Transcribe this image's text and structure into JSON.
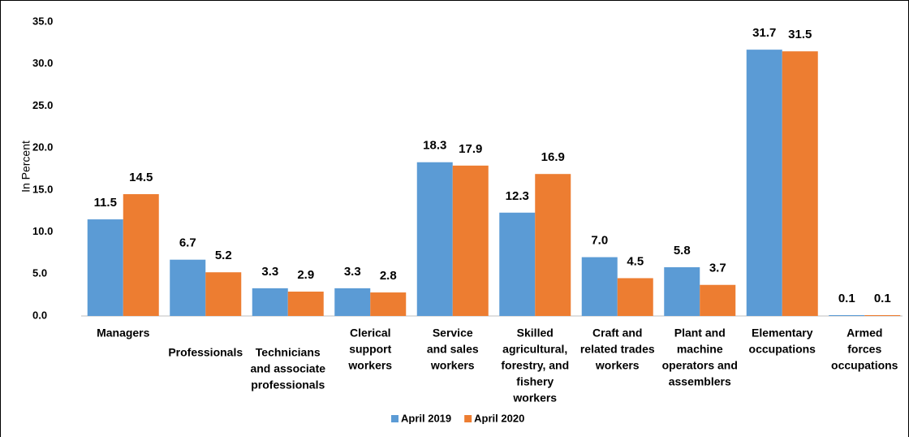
{
  "chart_data": {
    "type": "bar",
    "y_label": "In Percent",
    "categories": [
      [
        "Managers"
      ],
      [
        "Professionals"
      ],
      [
        "Technicians",
        "and associate",
        "professionals"
      ],
      [
        "Clerical",
        "support",
        "workers"
      ],
      [
        "Service",
        "and sales",
        "workers"
      ],
      [
        "Skilled",
        "agricultural,",
        "forestry, and",
        "fishery",
        "workers"
      ],
      [
        "Craft and",
        "related trades",
        "workers"
      ],
      [
        "Plant and",
        "machine",
        "operators and",
        "assemblers"
      ],
      [
        "Elementary",
        "occupations"
      ],
      [
        "Armed",
        "forces",
        "occupations"
      ]
    ],
    "series": [
      {
        "name": "April 2019",
        "color": "#5b9bd5",
        "values": [
          11.5,
          6.7,
          3.3,
          3.3,
          18.3,
          12.3,
          7.0,
          5.8,
          31.7,
          0.1
        ],
        "value_labels": [
          "11.5",
          "6.7",
          "3.3",
          "3.3",
          "18.3",
          "12.3",
          "7.0",
          "5.8",
          "31.7",
          "0.1"
        ]
      },
      {
        "name": "April 2020",
        "color": "#ed7d31",
        "values": [
          14.5,
          5.2,
          2.9,
          2.8,
          17.9,
          16.9,
          4.5,
          3.7,
          31.5,
          0.1
        ],
        "value_labels": [
          "14.5",
          "5.2",
          "2.9",
          "2.8",
          "17.9",
          "16.9",
          "4.5",
          "3.7",
          "31.5",
          "0.1"
        ]
      }
    ],
    "ylim": [
      0,
      35
    ],
    "yticks": [
      {
        "value": 0,
        "label": "0.0"
      },
      {
        "value": 5,
        "label": "5.0"
      },
      {
        "value": 10,
        "label": "10.0"
      },
      {
        "value": 15,
        "label": "15.0"
      },
      {
        "value": 20,
        "label": "20.0"
      },
      {
        "value": 25,
        "label": "25.0"
      },
      {
        "value": 30,
        "label": "30.0"
      },
      {
        "value": 35,
        "label": "35.0"
      }
    ],
    "grid": false,
    "legend": "bottom"
  }
}
